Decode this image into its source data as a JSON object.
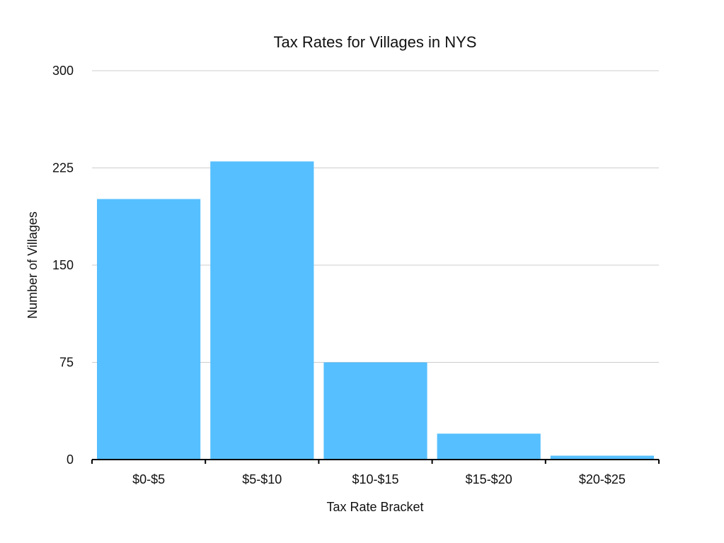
{
  "chart_data": {
    "type": "bar",
    "title": "Tax Rates for Villages in NYS",
    "xlabel": "Tax Rate Bracket",
    "ylabel": "Number of Villages",
    "categories": [
      "$0-$5",
      "$5-$10",
      "$10-$15",
      "$15-$20",
      "$20-$25"
    ],
    "values": [
      201,
      230,
      75,
      20,
      3
    ],
    "ylim": [
      0,
      300
    ],
    "yticks": [
      "0",
      "75",
      "150",
      "225",
      "300"
    ],
    "grid": true,
    "legend": "none",
    "bar_color": "#56bfff",
    "grid_color": "#cccccc",
    "axis_color": "#000000"
  }
}
